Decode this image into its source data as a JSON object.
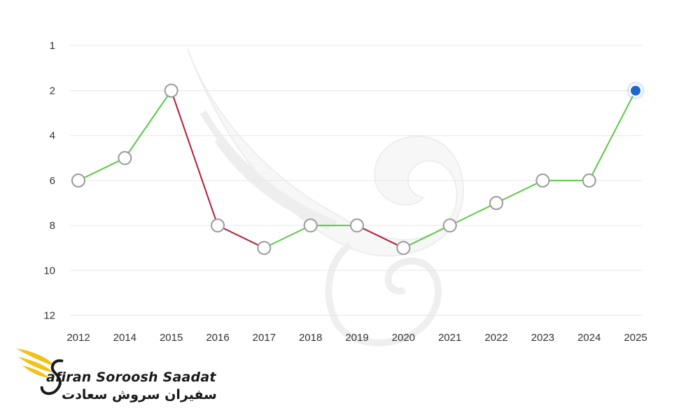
{
  "chart_data": {
    "type": "line",
    "categories": [
      "2012",
      "2014",
      "2015",
      "2016",
      "2017",
      "2018",
      "2019",
      "2020",
      "2021",
      "2022",
      "2023",
      "2024",
      "2025"
    ],
    "values": [
      6,
      5,
      2,
      8,
      9,
      8,
      8,
      9,
      8,
      7,
      6,
      6,
      2
    ],
    "y_ticks": [
      1,
      2,
      4,
      6,
      8,
      10,
      12
    ],
    "y_tick_labels": [
      "1",
      "2",
      "4",
      "6",
      "8",
      "10",
      "12"
    ],
    "ylim": [
      1,
      12
    ],
    "y_axis_reversed": true,
    "grid": true,
    "colors": {
      "rising": "#5cc84a",
      "falling": "#b21e35",
      "marker_fill": "#ffffff",
      "marker_stroke": "#9a9a9a",
      "highlight_marker": "#1e66c8",
      "grid": "#e6e6e6"
    },
    "highlighted_point": "2025"
  },
  "logo": {
    "text_en": "afiran Soroosh Saadat",
    "text_fa": "سفیران سروش سعادت",
    "colors": {
      "wing": "#f2c21b",
      "dark": "#1a1a1a"
    }
  }
}
